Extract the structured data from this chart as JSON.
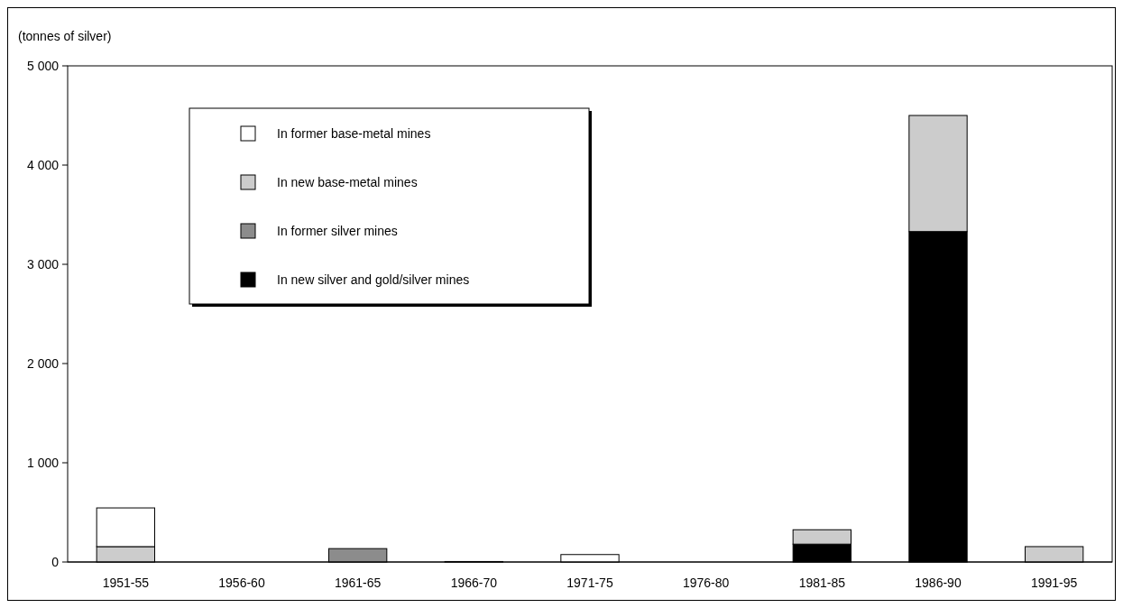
{
  "chart_data": {
    "type": "bar",
    "ylabel": "(tonnes of silver)",
    "stacked": true,
    "categories": [
      "1951-55",
      "1956-60",
      "1961-65",
      "1966-70",
      "1971-75",
      "1976-80",
      "1981-85",
      "1986-90",
      "1991-95"
    ],
    "series": [
      {
        "name": "In new silver and gold/silver mines",
        "color": "#000000",
        "values": [
          0,
          0,
          0,
          0,
          0,
          0,
          180,
          3330,
          0
        ]
      },
      {
        "name": "In former silver mines",
        "color": "#8c8c8c",
        "values": [
          0,
          0,
          135,
          0,
          0,
          0,
          0,
          0,
          0
        ]
      },
      {
        "name": "In new base-metal mines",
        "color": "#cccccc",
        "values": [
          155,
          0,
          0,
          0,
          0,
          0,
          145,
          1170,
          155
        ]
      },
      {
        "name": "In former base-metal mines",
        "color": "#ffffff",
        "values": [
          390,
          0,
          0,
          5,
          75,
          0,
          0,
          0,
          0
        ]
      }
    ],
    "ylim": [
      0,
      5000
    ],
    "yticks": [
      {
        "value": 0,
        "label": "0"
      },
      {
        "value": 1000,
        "label": "1 000"
      },
      {
        "value": 2000,
        "label": "2 000"
      },
      {
        "value": 3000,
        "label": "3 000"
      },
      {
        "value": 4000,
        "label": "4 000"
      },
      {
        "value": 5000,
        "label": "5 000"
      }
    ],
    "legend": "top left"
  }
}
